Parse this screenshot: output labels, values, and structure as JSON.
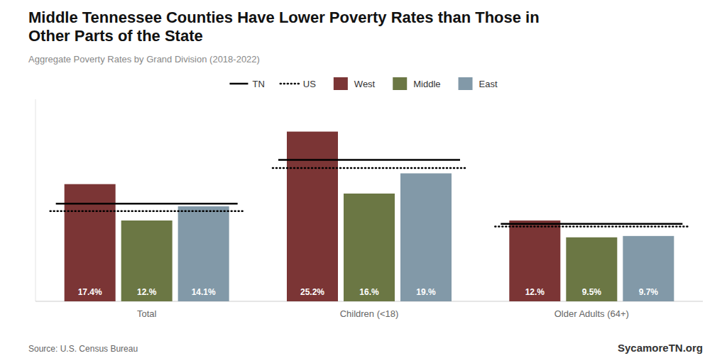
{
  "chart_data": {
    "type": "bar",
    "title": "Middle Tennessee Counties Have Lower Poverty Rates than Those in\nOther Parts of the State",
    "subtitle": "Aggregate Poverty Rates by Grand Division (2018-2022)",
    "categories": [
      "Total",
      "Children (<18)",
      "Older Adults (64+)"
    ],
    "series": [
      {
        "name": "TN",
        "type": "hline",
        "color": "#000000",
        "line_style": "solid",
        "values": [
          14.5,
          21.0,
          11.5
        ]
      },
      {
        "name": "US",
        "type": "hline",
        "color": "#000000",
        "line_style": "dotted",
        "values": [
          13.4,
          19.8,
          11.1
        ]
      },
      {
        "name": "West",
        "type": "bar",
        "color": "#7B3535",
        "values": [
          17.4,
          25.2,
          12.0
        ],
        "value_labels": [
          "17.4%",
          "25.2%",
          "12.%"
        ]
      },
      {
        "name": "Middle",
        "type": "bar",
        "color": "#6B7744",
        "values": [
          12.0,
          16.0,
          9.5
        ],
        "value_labels": [
          "12.%",
          "16.%",
          "9.5%"
        ]
      },
      {
        "name": "East",
        "type": "bar",
        "color": "#8299A8",
        "values": [
          14.1,
          19.0,
          9.7
        ],
        "value_labels": [
          "14.1%",
          "19.%",
          "9.7%"
        ]
      }
    ],
    "ylim": [
      0,
      30
    ],
    "grid": false,
    "legend": "top",
    "data_labels": true,
    "tick_labels": "x",
    "annotations": [
      "Source: U.S. Census Bureau",
      "SycamoreTN.org"
    ]
  }
}
